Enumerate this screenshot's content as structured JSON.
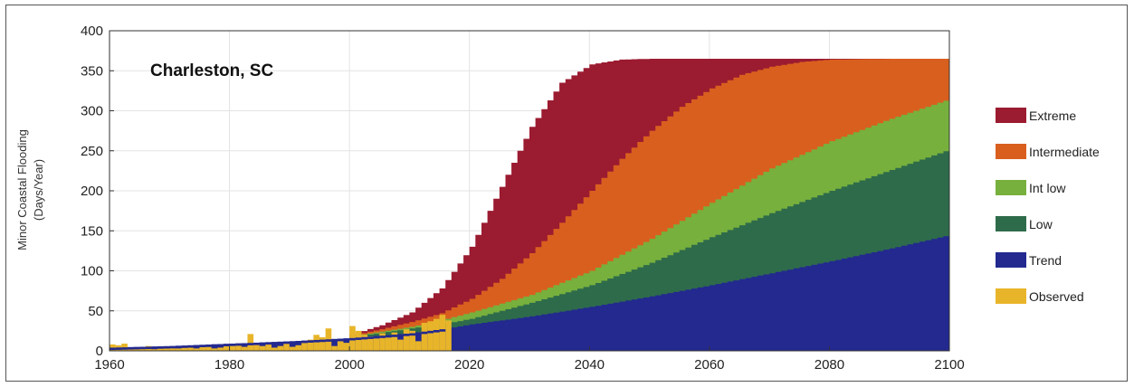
{
  "chart_data": {
    "type": "area",
    "title": "Charleston, SC",
    "ylabel_lines": [
      "Minor Coastal Flooding",
      "(Days/Year)"
    ],
    "xlabel": "",
    "xlim": [
      1960,
      2100
    ],
    "ylim": [
      0,
      400
    ],
    "x_ticks": [
      1960,
      1980,
      2000,
      2020,
      2040,
      2060,
      2080,
      2100
    ],
    "y_ticks": [
      0,
      50,
      100,
      150,
      200,
      250,
      300,
      350,
      400
    ],
    "grid": true,
    "legend_position": "right",
    "legend": [
      {
        "name": "Extreme",
        "color": "#9b1b30"
      },
      {
        "name": "Intermediate",
        "color": "#d95f1f"
      },
      {
        "name": "Int low",
        "color": "#77b03c"
      },
      {
        "name": "Low",
        "color": "#2e6b4b"
      },
      {
        "name": "Trend",
        "color": "#23298f"
      },
      {
        "name": "Observed",
        "color": "#e8b52a"
      }
    ],
    "series": [
      {
        "name": "Extreme",
        "color": "#9b1b30",
        "x": [
          2000,
          2005,
          2010,
          2015,
          2020,
          2025,
          2030,
          2035,
          2040,
          2045,
          2050,
          2060,
          2070,
          2080,
          2090,
          2100
        ],
        "y": [
          20,
          32,
          48,
          78,
          130,
          205,
          280,
          335,
          358,
          364,
          365,
          365,
          365,
          365,
          365,
          365
        ]
      },
      {
        "name": "Intermediate",
        "color": "#d95f1f",
        "x": [
          2000,
          2005,
          2010,
          2015,
          2020,
          2025,
          2030,
          2035,
          2040,
          2045,
          2050,
          2055,
          2060,
          2065,
          2070,
          2075,
          2080,
          2090,
          2100
        ],
        "y": [
          19,
          27,
          36,
          47,
          65,
          90,
          122,
          160,
          200,
          240,
          275,
          305,
          328,
          345,
          355,
          361,
          364,
          365,
          365
        ]
      },
      {
        "name": "Int low",
        "color": "#77b03c",
        "x": [
          2000,
          2010,
          2015,
          2020,
          2030,
          2040,
          2050,
          2060,
          2070,
          2080,
          2090,
          2100
        ],
        "y": [
          18,
          30,
          38,
          48,
          70,
          100,
          140,
          185,
          228,
          262,
          290,
          315
        ]
      },
      {
        "name": "Low",
        "color": "#2e6b4b",
        "x": [
          2000,
          2010,
          2015,
          2020,
          2030,
          2040,
          2050,
          2060,
          2070,
          2080,
          2090,
          2100
        ],
        "y": [
          17,
          28,
          33,
          40,
          60,
          82,
          110,
          142,
          172,
          200,
          226,
          252
        ]
      },
      {
        "name": "Trend",
        "color": "#23298f",
        "x": [
          1960,
          1970,
          1980,
          1990,
          2000,
          2010,
          2016,
          2020,
          2030,
          2040,
          2050,
          2060,
          2070,
          2080,
          2090,
          2100
        ],
        "y": [
          4,
          6,
          9,
          12,
          16,
          22,
          28,
          33,
          43,
          55,
          68,
          82,
          97,
          112,
          128,
          145
        ]
      }
    ],
    "observed": {
      "name": "Observed",
      "color": "#e8b52a",
      "x": [
        1960,
        1961,
        1962,
        1963,
        1964,
        1965,
        1966,
        1967,
        1968,
        1969,
        1970,
        1971,
        1972,
        1973,
        1974,
        1975,
        1976,
        1977,
        1978,
        1979,
        1980,
        1981,
        1982,
        1983,
        1984,
        1985,
        1986,
        1987,
        1988,
        1989,
        1990,
        1991,
        1992,
        1993,
        1994,
        1995,
        1996,
        1997,
        1998,
        1999,
        2000,
        2001,
        2002,
        2003,
        2004,
        2005,
        2006,
        2007,
        2008,
        2009,
        2010,
        2011,
        2012,
        2013,
        2014,
        2015,
        2016
      ],
      "y": [
        8,
        7,
        9,
        3,
        2,
        4,
        6,
        2,
        3,
        5,
        4,
        3,
        6,
        4,
        3,
        7,
        5,
        3,
        4,
        6,
        7,
        9,
        5,
        21,
        8,
        6,
        10,
        4,
        6,
        9,
        5,
        7,
        10,
        14,
        20,
        17,
        28,
        6,
        12,
        10,
        31,
        25,
        20,
        18,
        16,
        22,
        19,
        23,
        14,
        27,
        25,
        12,
        35,
        37,
        40,
        45,
        38
      ]
    }
  }
}
